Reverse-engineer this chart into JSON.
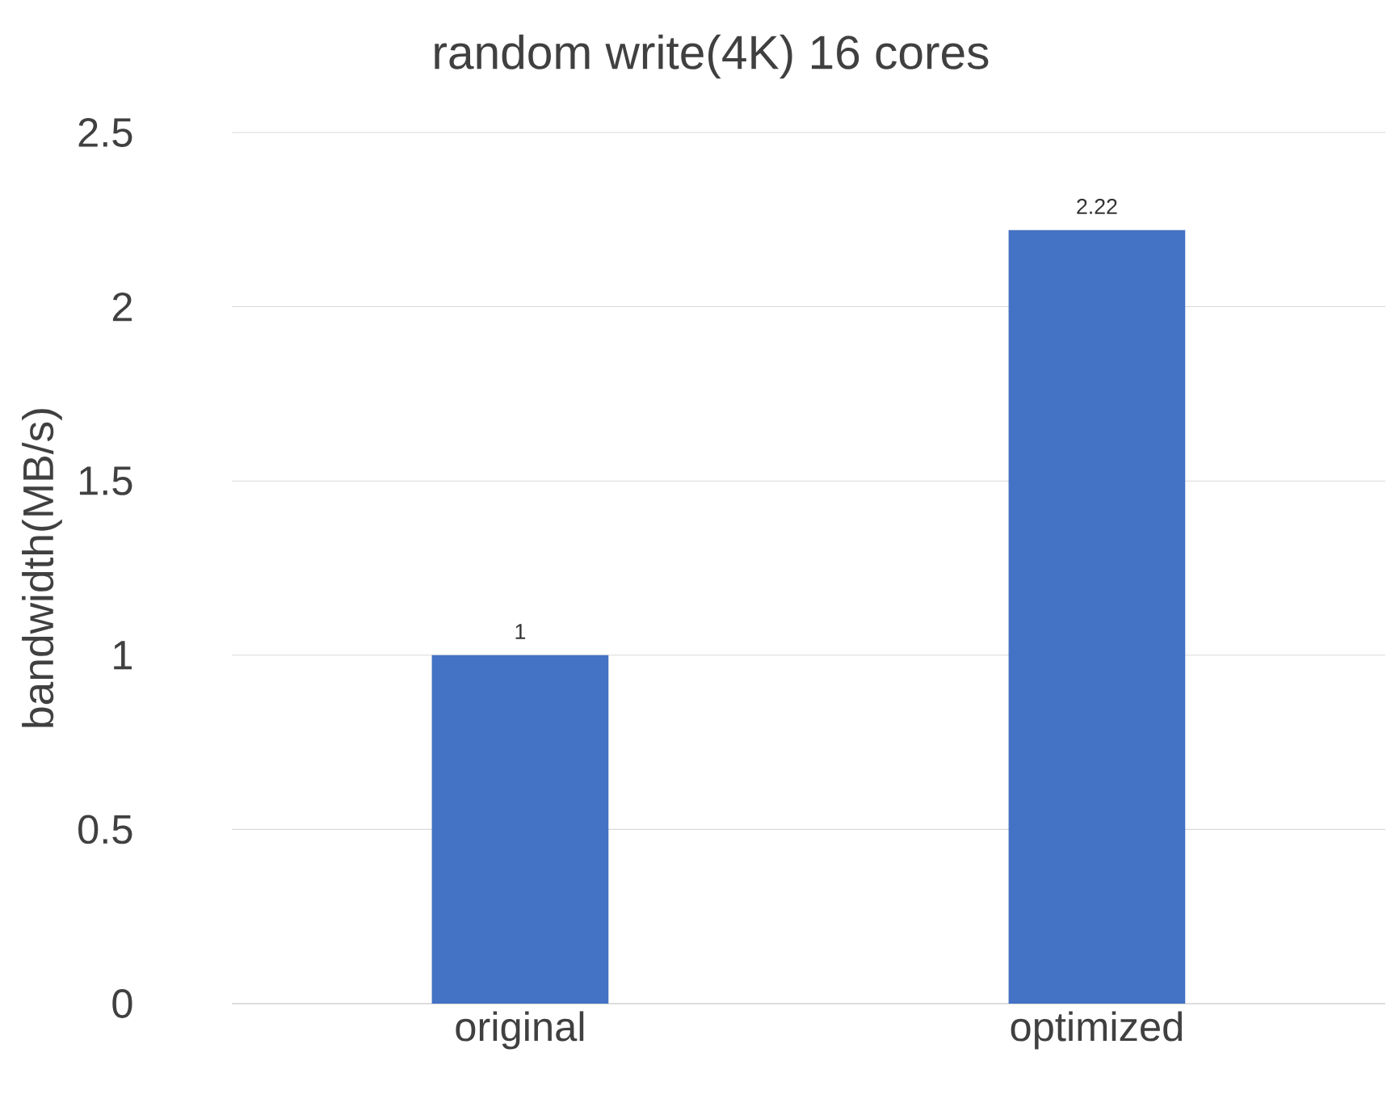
{
  "chart_data": {
    "type": "bar",
    "title": "random write(4K) 16 cores",
    "ylabel": "bandwidth(MB/s)",
    "categories": [
      "original",
      "optimized"
    ],
    "values": [
      1,
      2.22
    ],
    "color": "#4472c4",
    "ylim": [
      0,
      2.5
    ],
    "yticks": [
      0,
      0.5,
      1,
      1.5,
      2,
      2.5
    ],
    "grid": "y",
    "data_labels": true
  }
}
